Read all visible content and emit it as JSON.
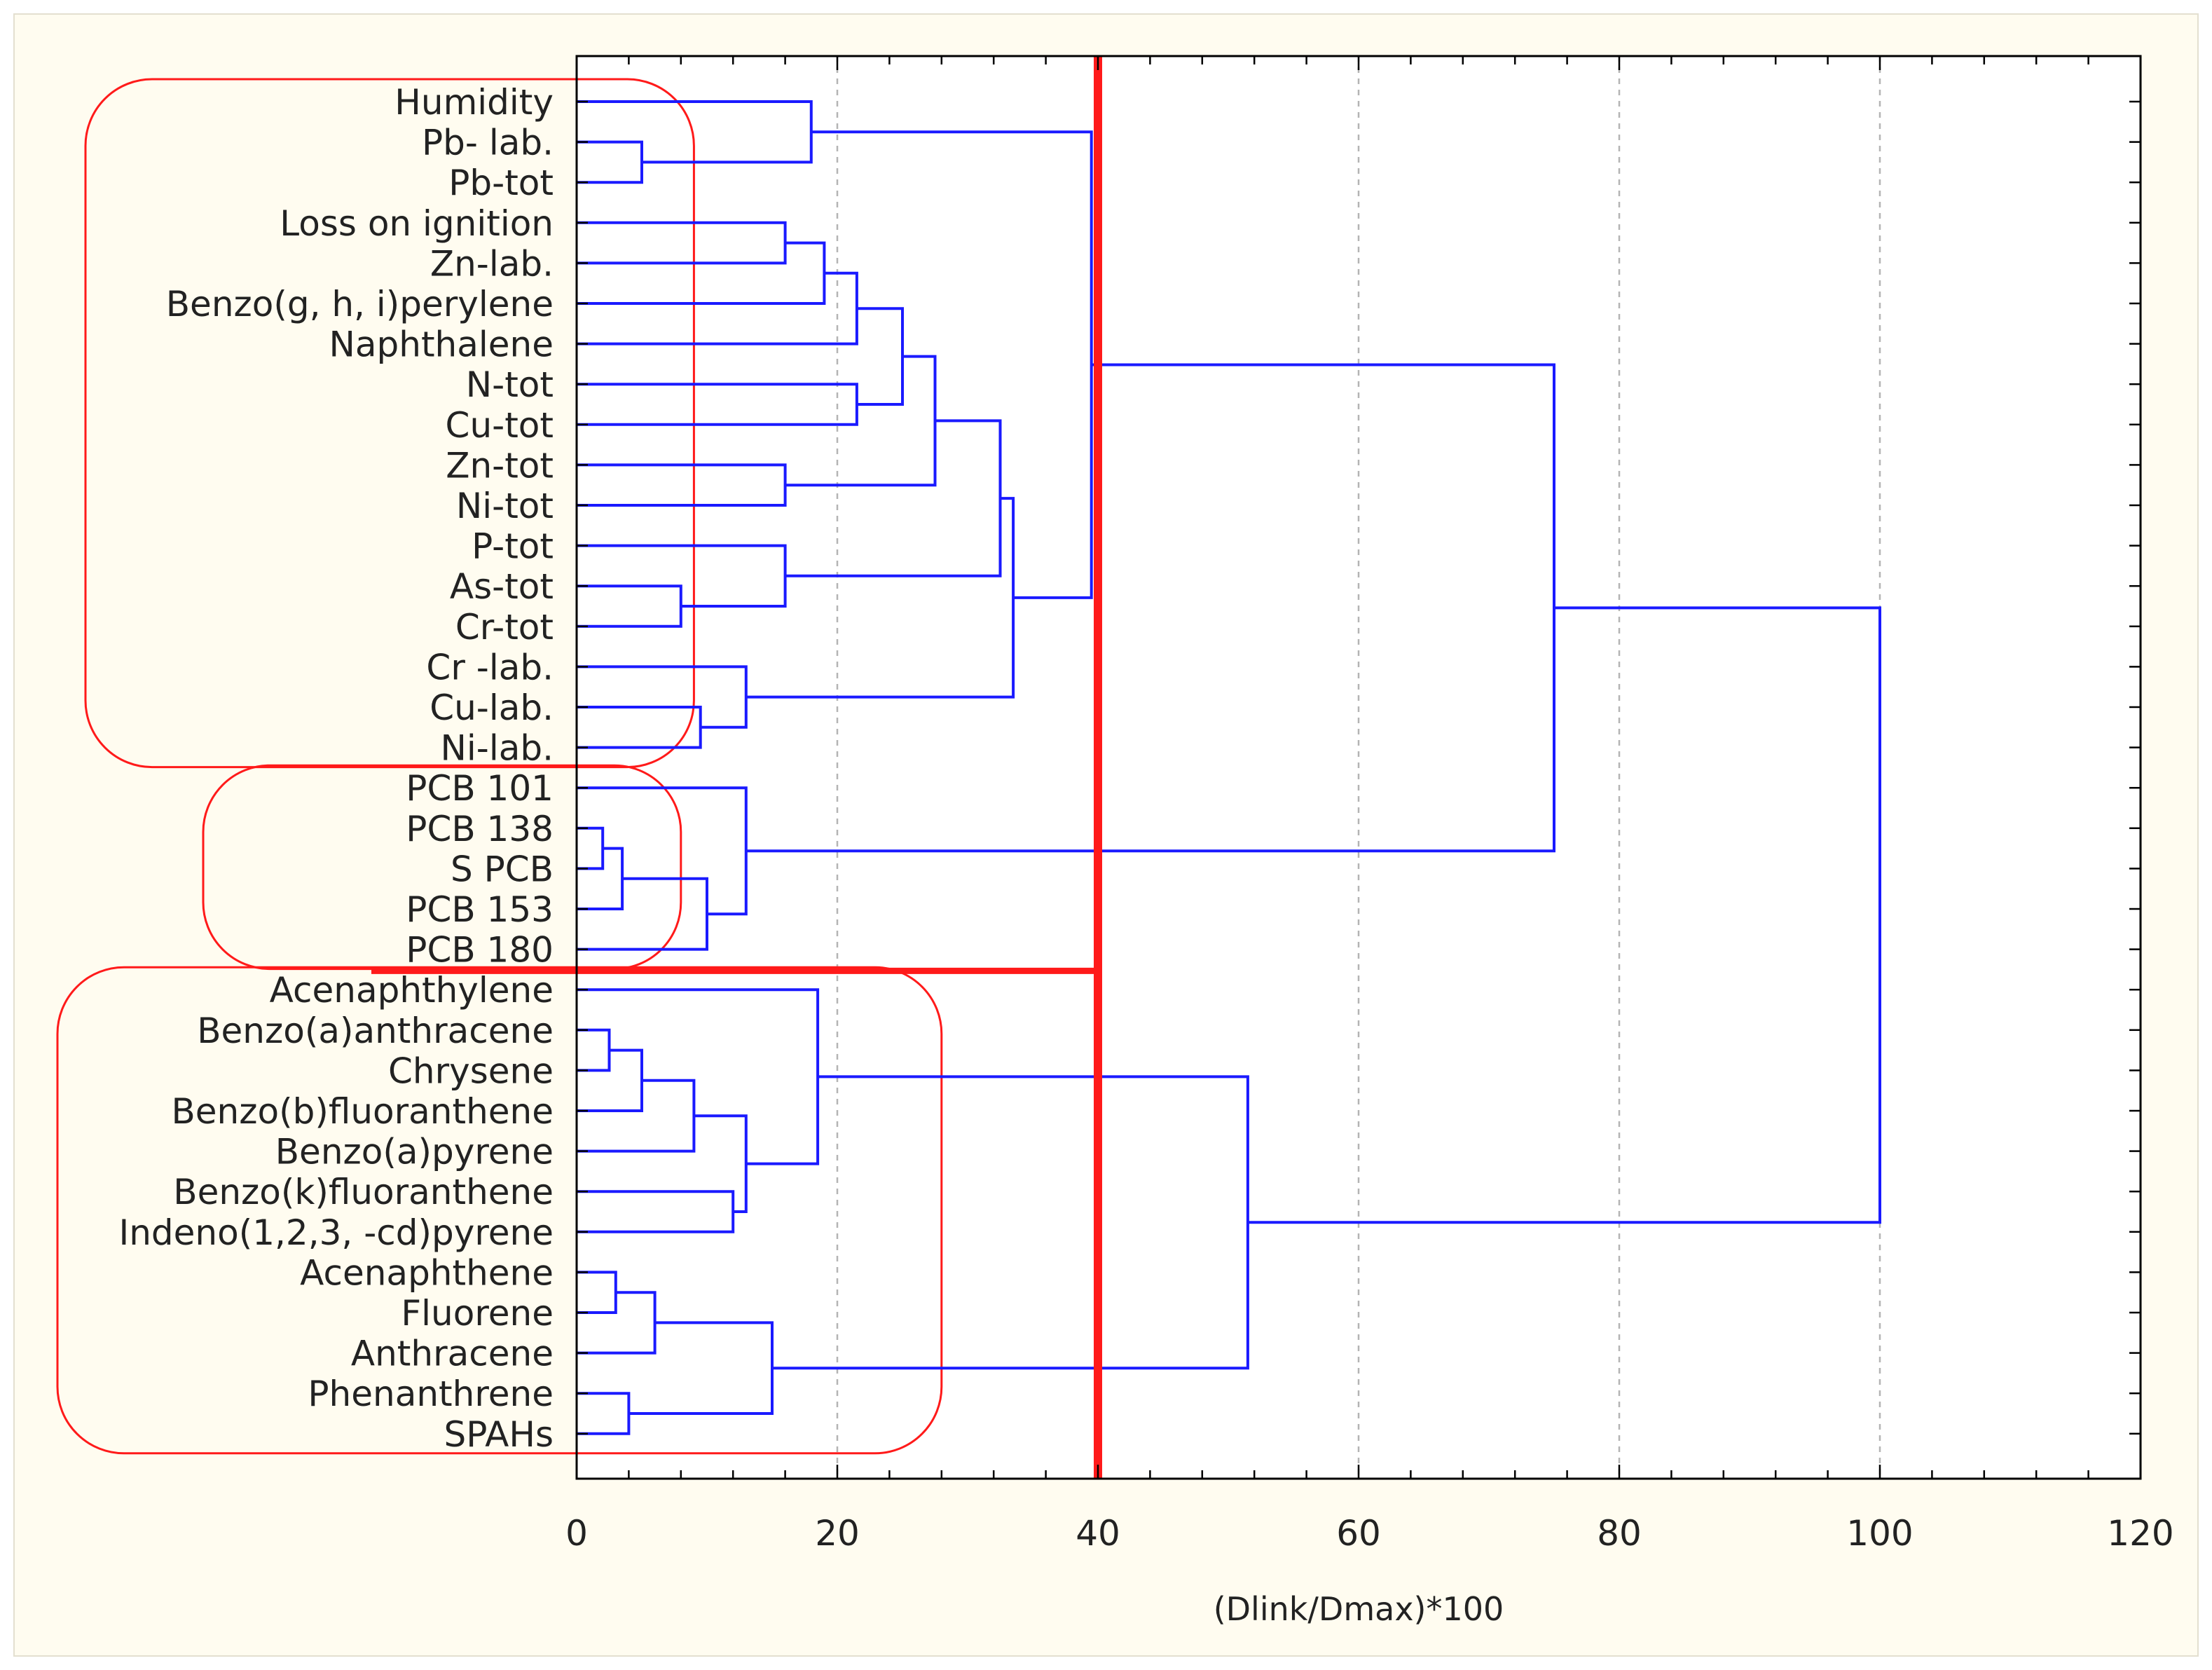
{
  "chart_data": {
    "type": "dendrogram",
    "title": "",
    "xlabel": "(Dlink/Dmax)*100",
    "ylabel": "",
    "xlim": [
      0,
      120
    ],
    "x_ticks": [
      0,
      20,
      40,
      60,
      80,
      100,
      120
    ],
    "x_tick_labels": [
      "0",
      "20",
      "40",
      "60",
      "80",
      "100",
      "120"
    ],
    "grid": {
      "vertical_dashed_at": [
        20,
        60,
        80,
        100
      ]
    },
    "cut_line": {
      "x": 40,
      "color": "#ff1a1a"
    },
    "colors": {
      "link": "#1a1aff",
      "cut": "#ff1a1a",
      "group_box": "#ff1a1a",
      "frame_bg": "#fffcf0",
      "grid": "#b4b4b4"
    },
    "leaves": [
      "Humidity",
      "Pb- lab.",
      "Pb-tot",
      "Loss on ignition",
      "Zn-lab.",
      "Benzo(g, h, i)perylene",
      "Naphthalene",
      "N-tot",
      "Cu-tot",
      "Zn-tot",
      "Ni-tot",
      "P-tot",
      "As-tot",
      "Cr-tot",
      "Cr -lab.",
      "Cu-lab.",
      "Ni-lab.",
      "PCB 101",
      "PCB 138",
      "S PCB",
      "PCB 153",
      "PCB 180",
      "Acenaphthylene",
      "Benzo(a)anthracene",
      "Chrysene",
      "Benzo(b)fluoranthene",
      "Benzo(a)pyrene",
      "Benzo(k)fluoranthene",
      "Indeno(1,2,3, -cd)pyrene",
      "Acenaphthene",
      "Fluorene",
      "Anthracene",
      "Phenanthrene",
      "SPAHs"
    ],
    "merges": [
      {
        "id": "m1",
        "a": "Pb- lab.",
        "b": "Pb-tot",
        "height": 5
      },
      {
        "id": "m2",
        "a": "Humidity",
        "b": "m1",
        "height": 18
      },
      {
        "id": "m3",
        "a": "Loss on ignition",
        "b": "Zn-lab.",
        "height": 16
      },
      {
        "id": "m4",
        "a": "m3",
        "b": "Benzo(g, h, i)perylene",
        "height": 19
      },
      {
        "id": "m5",
        "a": "m4",
        "b": "Naphthalene",
        "height": 21.5
      },
      {
        "id": "m6",
        "a": "N-tot",
        "b": "Cu-tot",
        "height": 21.5
      },
      {
        "id": "m7",
        "a": "m5",
        "b": "m6",
        "height": 25
      },
      {
        "id": "m8",
        "a": "Zn-tot",
        "b": "Ni-tot",
        "height": 16
      },
      {
        "id": "m9",
        "a": "m7",
        "b": "m8",
        "height": 27.5
      },
      {
        "id": "m10",
        "a": "As-tot",
        "b": "Cr-tot",
        "height": 8
      },
      {
        "id": "m11",
        "a": "P-tot",
        "b": "m10",
        "height": 16
      },
      {
        "id": "m12",
        "a": "m9",
        "b": "m11",
        "height": 32.5
      },
      {
        "id": "m13",
        "a": "Cu-lab.",
        "b": "Ni-lab.",
        "height": 9.5
      },
      {
        "id": "m14",
        "a": "Cr -lab.",
        "b": "m13",
        "height": 13
      },
      {
        "id": "m15",
        "a": "m12",
        "b": "m14",
        "height": 33.5
      },
      {
        "id": "m16",
        "a": "m2",
        "b": "m15",
        "height": 39.5
      },
      {
        "id": "m17",
        "a": "PCB 138",
        "b": "S PCB",
        "height": 2
      },
      {
        "id": "m18",
        "a": "m17",
        "b": "PCB 153",
        "height": 3.5
      },
      {
        "id": "m19",
        "a": "m18",
        "b": "PCB 180",
        "height": 10
      },
      {
        "id": "m20",
        "a": "PCB 101",
        "b": "m19",
        "height": 13
      },
      {
        "id": "m21",
        "a": "m16",
        "b": "m20",
        "height": 75
      },
      {
        "id": "m22",
        "a": "Benzo(a)anthracene",
        "b": "Chrysene",
        "height": 2.5
      },
      {
        "id": "m23",
        "a": "m22",
        "b": "Benzo(b)fluoranthene",
        "height": 5
      },
      {
        "id": "m24",
        "a": "m23",
        "b": "Benzo(a)pyrene",
        "height": 9
      },
      {
        "id": "m25",
        "a": "Benzo(k)fluoranthene",
        "b": "Indeno(1,2,3, -cd)pyrene",
        "height": 12
      },
      {
        "id": "m26",
        "a": "m24",
        "b": "m25",
        "height": 13
      },
      {
        "id": "m27",
        "a": "Acenaphthylene",
        "b": "m26",
        "height": 18.5
      },
      {
        "id": "m28",
        "a": "Acenaphthene",
        "b": "Fluorene",
        "height": 3
      },
      {
        "id": "m29",
        "a": "m28",
        "b": "Anthracene",
        "height": 6
      },
      {
        "id": "m30",
        "a": "Phenanthrene",
        "b": "SPAHs",
        "height": 4
      },
      {
        "id": "m31",
        "a": "m29",
        "b": "m30",
        "height": 15
      },
      {
        "id": "m32",
        "a": "m27",
        "b": "m31",
        "height": 51.5
      },
      {
        "id": "m33",
        "a": "m21",
        "b": "m32",
        "height": 100
      }
    ],
    "groups": [
      {
        "name": "group-1",
        "first_leaf": "Humidity",
        "last_leaf": "Ni-lab.",
        "x_extent": 9
      },
      {
        "name": "group-2",
        "first_leaf": "PCB 101",
        "last_leaf": "PCB 180",
        "x_extent": 8
      },
      {
        "name": "group-3",
        "first_leaf": "Acenaphthylene",
        "last_leaf": "SPAHs",
        "x_extent": 28
      }
    ]
  }
}
